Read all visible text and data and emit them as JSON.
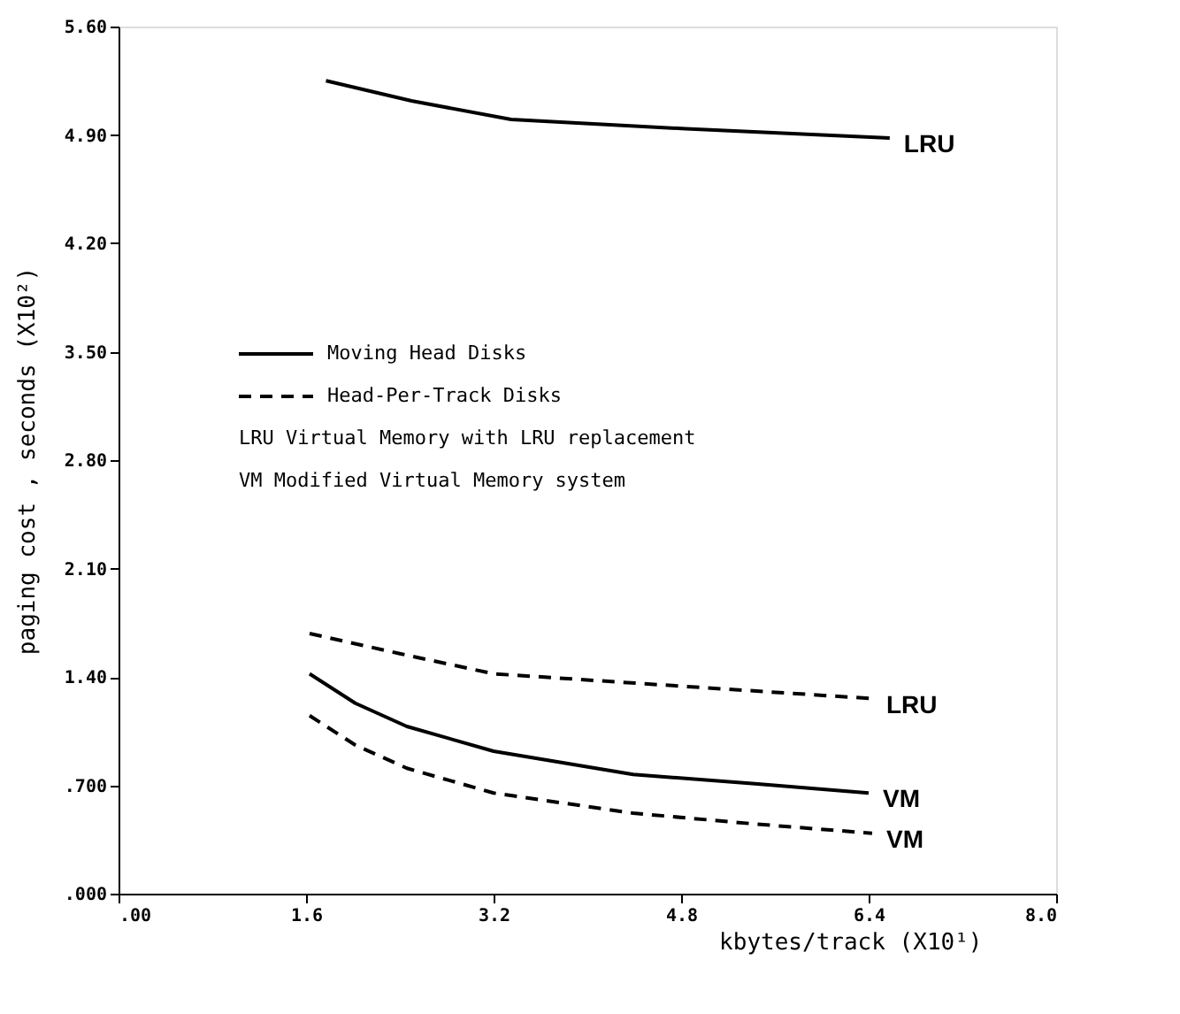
{
  "chart_data": {
    "type": "line",
    "xlabel": "kbytes/track (X10¹)",
    "ylabel": "paging cost , seconds (X10²)",
    "series": [
      {
        "name": "LRU",
        "color": "#000000",
        "line_style": "solid",
        "x": [
          1.77,
          2.5,
          3.35,
          4.84,
          6.58
        ],
        "values": [
          5.25,
          5.12,
          5.0,
          4.94,
          4.88
        ]
      },
      {
        "name": "LRU",
        "color": "#000000",
        "line_style": "dashed",
        "x": [
          1.63,
          2.4,
          3.2,
          4.8,
          6.43
        ],
        "values": [
          1.68,
          1.55,
          1.42,
          1.34,
          1.26
        ]
      },
      {
        "name": "VM",
        "color": "#000000",
        "line_style": "solid",
        "x": [
          1.63,
          2.02,
          2.46,
          3.2,
          4.39,
          5.43,
          6.4
        ],
        "values": [
          1.42,
          1.23,
          1.08,
          0.92,
          0.77,
          0.71,
          0.65
        ]
      },
      {
        "name": "VM",
        "color": "#000000",
        "line_style": "dashed",
        "x": [
          1.63,
          2.02,
          2.46,
          3.2,
          4.39,
          5.43,
          6.43
        ],
        "values": [
          1.15,
          0.96,
          0.81,
          0.65,
          0.52,
          0.45,
          0.39
        ]
      }
    ],
    "annotations": [
      "Moving Head Disks",
      "Head-Per-Track Disks",
      "LRU   Virtual Memory with LRU replacement",
      "VM    Modified Virtual Memory system"
    ],
    "xlim": [
      0,
      8.0
    ],
    "ylim": [
      0,
      5.6
    ],
    "xticks": [
      {
        "value": 0,
        "label": ".00"
      },
      {
        "value": 1.6,
        "label": "1.6"
      },
      {
        "value": 3.2,
        "label": "3.2"
      },
      {
        "value": 4.8,
        "label": "4.8"
      },
      {
        "value": 6.4,
        "label": "6.4"
      },
      {
        "value": 8.0,
        "label": "8.0"
      }
    ],
    "yticks": [
      {
        "value": 0,
        "label": ".000"
      },
      {
        "value": 0.7,
        "label": ".700"
      },
      {
        "value": 1.4,
        "label": "1.40"
      },
      {
        "value": 2.1,
        "label": "2.10"
      },
      {
        "value": 2.8,
        "label": "2.80"
      },
      {
        "value": 3.5,
        "label": "3.50"
      },
      {
        "value": 4.2,
        "label": "4.20"
      },
      {
        "value": 4.9,
        "label": "4.90"
      },
      {
        "value": 5.6,
        "label": "5.60"
      }
    ],
    "grid": false
  }
}
